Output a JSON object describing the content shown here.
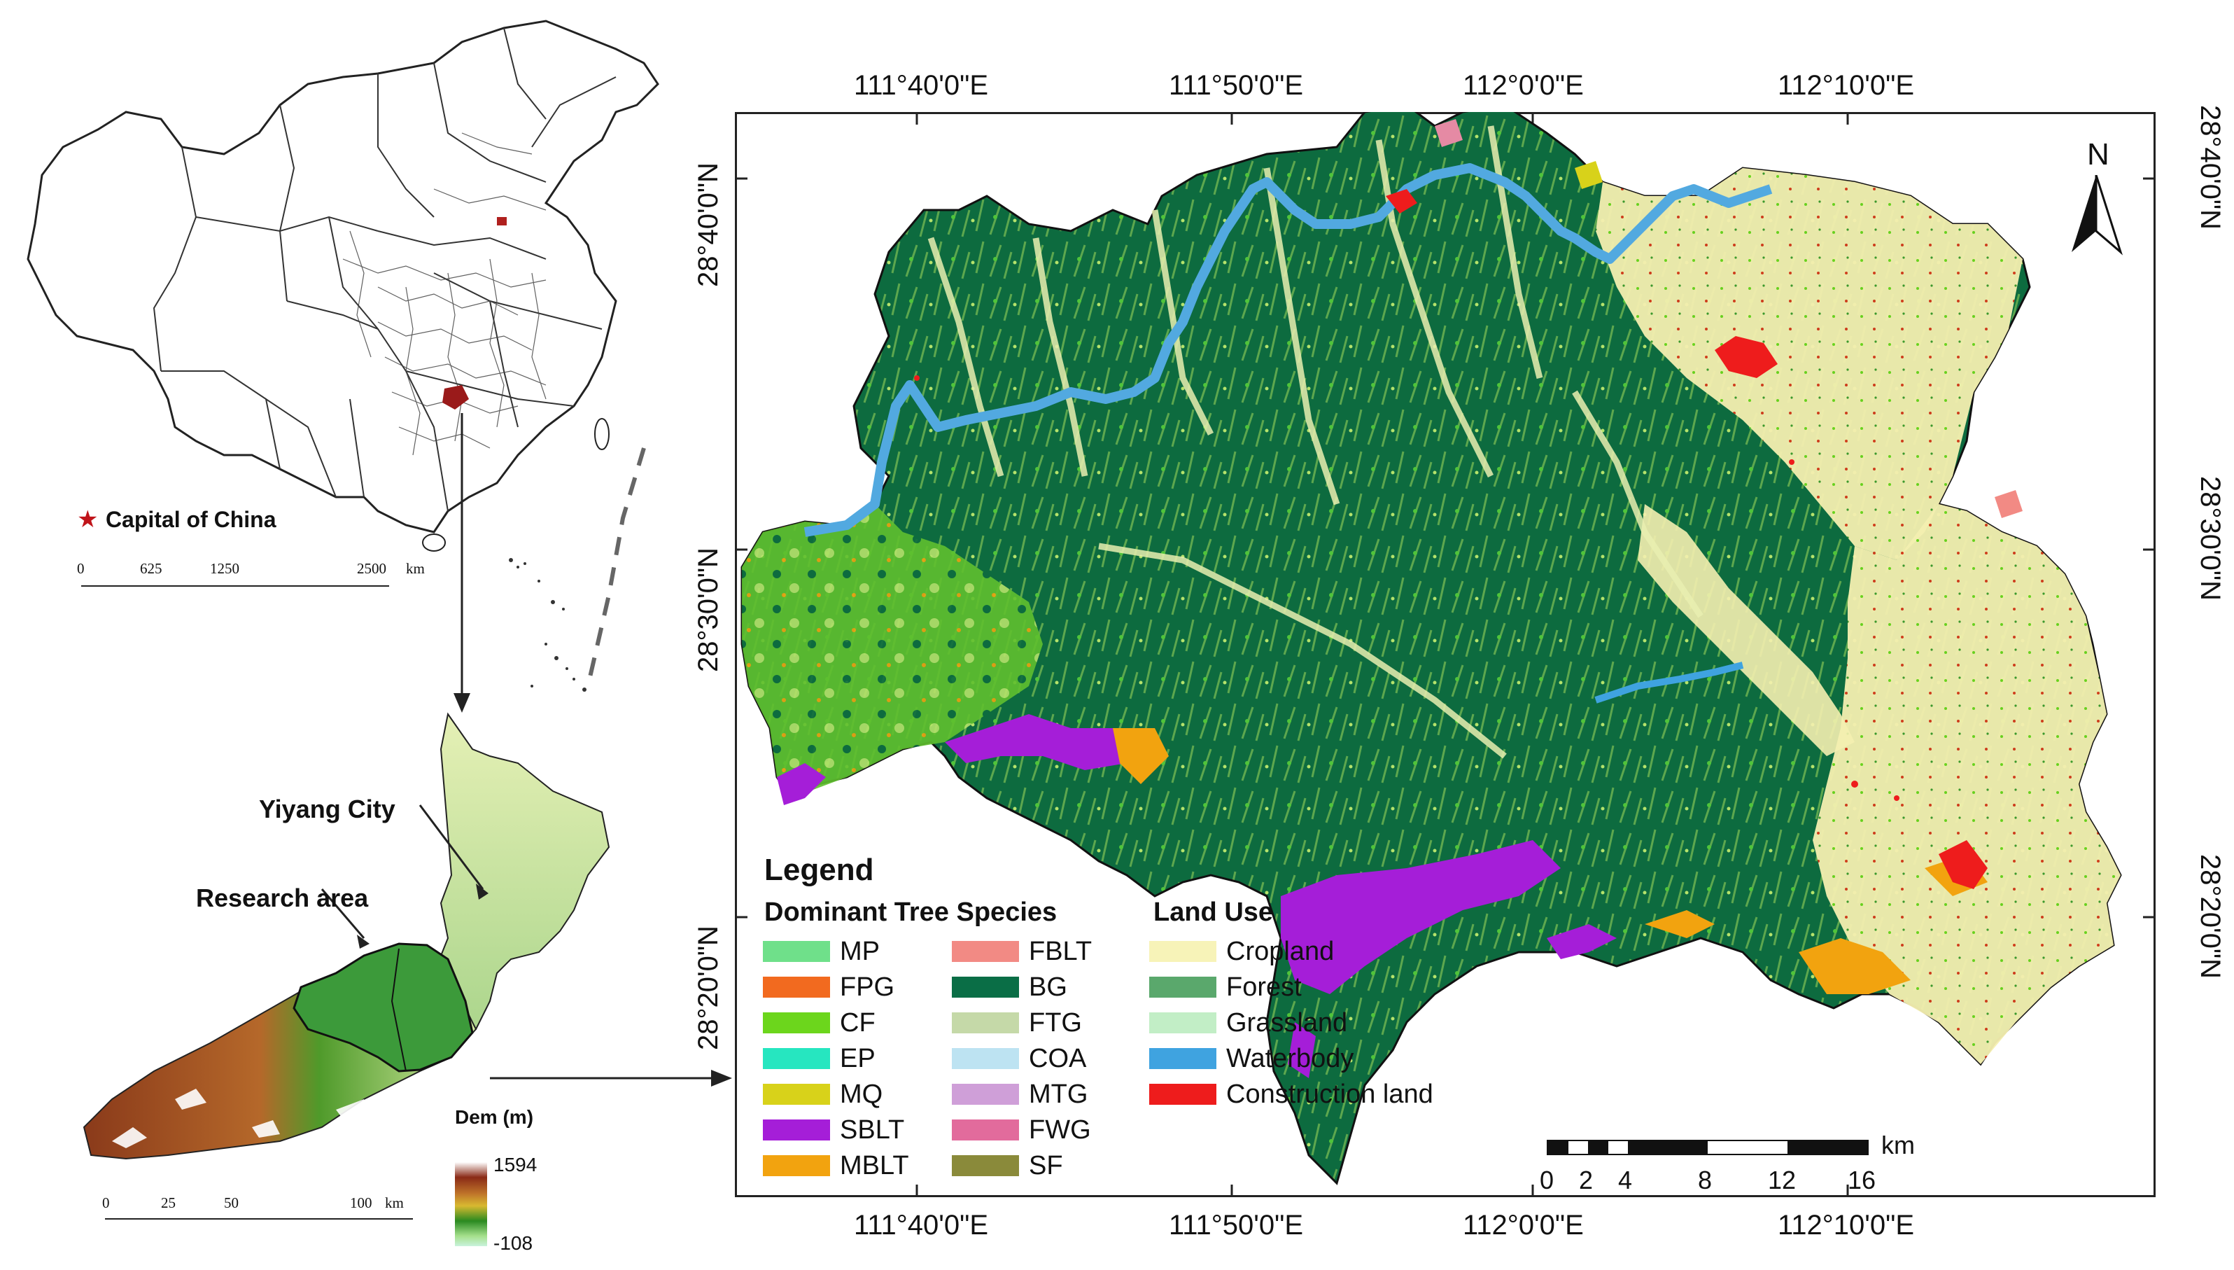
{
  "china_map": {
    "capital_label": "Capital of China",
    "scale_ticks": [
      "0",
      "625",
      "1250",
      "2500"
    ],
    "scale_unit": "km"
  },
  "region_map": {
    "yiyang_label": "Yiyang City",
    "research_label": "Research area",
    "scale_ticks": [
      "0",
      "25",
      "50",
      "100"
    ],
    "scale_unit": "km",
    "dem_title": "Dem (m)",
    "dem_max": "1594",
    "dem_min": "-108"
  },
  "main_map": {
    "top_lon": [
      "111°40'0\"E",
      "111°50'0\"E",
      "112°0'0\"E",
      "112°10'0\"E"
    ],
    "bottom_lon": [
      "111°40'0\"E",
      "111°50'0\"E",
      "112°0'0\"E",
      "112°10'0\"E"
    ],
    "left_lat": [
      "28°40'0\"N",
      "28°30'0\"N",
      "28°20'0\"N"
    ],
    "right_lat": [
      "28°40'0\"N",
      "28°30'0\"N",
      "28°20'0\"N"
    ],
    "north": "N",
    "scale_ticks": [
      "0",
      "2",
      "4",
      "8",
      "12",
      "16"
    ],
    "scale_unit": "km"
  },
  "legend": {
    "title": "Legend",
    "species_title": "Dominant Tree Species",
    "landuse_title": "Land Use",
    "species_col1": [
      {
        "label": "MP",
        "color": "#6fe08a"
      },
      {
        "label": "FPG",
        "color": "#f26a1f"
      },
      {
        "label": "CF",
        "color": "#6cd61c"
      },
      {
        "label": "EP",
        "color": "#26e6c0"
      },
      {
        "label": "MQ",
        "color": "#d8d21a"
      },
      {
        "label": "SBLT",
        "color": "#a51ed8"
      },
      {
        "label": "MBLT",
        "color": "#f2a30f"
      }
    ],
    "species_col2": [
      {
        "label": "FBLT",
        "color": "#f28a84"
      },
      {
        "label": "BG",
        "color": "#0a6e46"
      },
      {
        "label": "FTG",
        "color": "#c5d9a8"
      },
      {
        "label": "COA",
        "color": "#bde3f2"
      },
      {
        "label": "MTG",
        "color": "#cf9fd8"
      },
      {
        "label": "FWG",
        "color": "#e26b9c"
      },
      {
        "label": "SF",
        "color": "#8a8a3a"
      }
    ],
    "landuse": [
      {
        "label": "Cropland",
        "color": "#f7f3b8"
      },
      {
        "label": "Forest",
        "color": "#5aa86c"
      },
      {
        "label": "Grassland",
        "color": "#c2eec6"
      },
      {
        "label": "Waterbody",
        "color": "#3fa3e0"
      },
      {
        "label": "Construction land",
        "color": "#ee1c1c"
      }
    ]
  }
}
